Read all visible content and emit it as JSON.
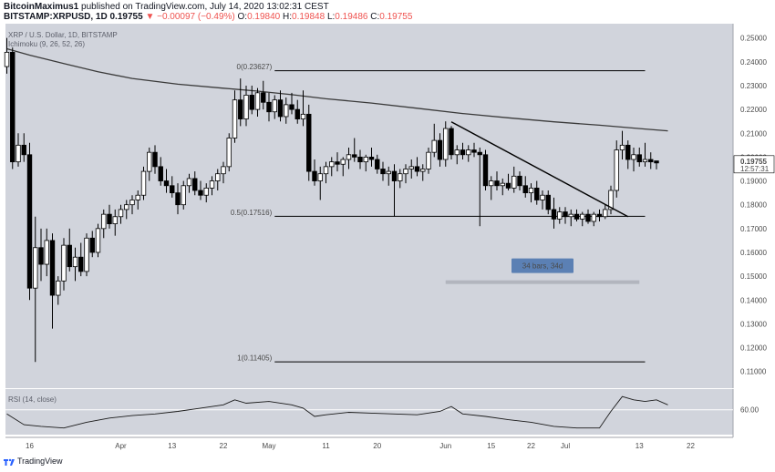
{
  "header": {
    "author": "BitcoinMaximus1",
    "published": "published on TradingView.com, July 14, 2020 13:02:31 CEST",
    "symbol": "BITSTAMP:XRPUSD, 1D",
    "price": "0.19755",
    "change": "▼ −0.00097 (−0.49%)",
    "ohlc_o_label": "O:",
    "ohlc_o": "0.19840",
    "ohlc_h_label": "H:",
    "ohlc_h": "0.19848",
    "ohlc_l_label": "L:",
    "ohlc_l": "0.19486",
    "ohlc_c_label": "C:",
    "ohlc_c": "0.19755"
  },
  "legend": {
    "pair": "XRP / U.S. Dollar, 1D, BITSTAMP",
    "ichimoku": "Ichimoku (9, 26, 52, 26)",
    "rsi": "RSI (14, close)"
  },
  "footer": {
    "brand": "TradingView"
  },
  "colors": {
    "background": "#d1d4dc",
    "candle_up": "#ffffff",
    "candle_down": "#000000",
    "ma_line": "#3a3a3a",
    "label_box": "#5b80b4",
    "range_bar": "#b2b5be",
    "price_box": "#ffffff"
  },
  "chart_data": {
    "type": "candlestick",
    "y_axis": {
      "ticks": [
        0.25,
        0.24,
        0.23,
        0.22,
        0.21,
        0.2,
        0.19,
        0.18,
        0.17,
        0.16,
        0.15,
        0.14,
        0.13,
        0.12,
        0.11
      ],
      "tick_labels": [
        "0.25000",
        "0.24000",
        "0.23000",
        "0.22000",
        "0.21000",
        "0.20000",
        "0.19000",
        "0.18000",
        "0.17000",
        "0.16000",
        "0.15000",
        "0.14000",
        "0.13000",
        "0.12000",
        "0.11000"
      ],
      "ylim": [
        0.103,
        0.256
      ]
    },
    "x_axis": {
      "tick_labels": [
        "16",
        "Apr",
        "13",
        "22",
        "May",
        "11",
        "20",
        "Jun",
        "15",
        "22",
        "Jul",
        "13",
        "22"
      ],
      "tick_index": [
        4,
        20,
        29,
        38,
        46,
        56,
        65,
        77,
        85,
        92,
        98,
        111,
        120
      ]
    },
    "current_price": {
      "value": 0.19755,
      "label": "0.19755",
      "countdown": "12:57:31"
    },
    "fib_levels": [
      {
        "label": "0(0.23627)",
        "value": 0.23627,
        "x_start": 47,
        "x_end": 112
      },
      {
        "label": "0.5(0.17516)",
        "value": 0.17516,
        "x_start": 47,
        "x_end": 112
      },
      {
        "label": "1(0.11405)",
        "value": 0.11405,
        "x_start": 47,
        "x_end": 112
      }
    ],
    "trendline": {
      "x1": 78,
      "y1": 0.2148,
      "x2": 109,
      "y2": 0.175
    },
    "range_measure": {
      "label": "34 bars, 34d",
      "x_start": 77,
      "x_end": 111,
      "value": 0.1475
    },
    "ma_line": {
      "x": [
        0,
        4,
        10,
        16,
        22,
        30,
        38,
        44,
        50,
        56,
        64,
        72,
        80,
        88,
        96,
        104,
        112,
        116
      ],
      "y": [
        0.2455,
        0.2428,
        0.2393,
        0.2358,
        0.233,
        0.2306,
        0.2289,
        0.2277,
        0.2262,
        0.2245,
        0.2227,
        0.2205,
        0.2183,
        0.2165,
        0.2148,
        0.2134,
        0.2118,
        0.211
      ]
    },
    "candles": [
      {
        "o": 0.238,
        "h": 0.25,
        "l": 0.235,
        "c": 0.244
      },
      {
        "o": 0.244,
        "h": 0.246,
        "l": 0.195,
        "c": 0.198
      },
      {
        "o": 0.198,
        "h": 0.21,
        "l": 0.196,
        "c": 0.205
      },
      {
        "o": 0.205,
        "h": 0.21,
        "l": 0.198,
        "c": 0.201
      },
      {
        "o": 0.201,
        "h": 0.206,
        "l": 0.14,
        "c": 0.145
      },
      {
        "o": 0.145,
        "h": 0.175,
        "l": 0.114,
        "c": 0.162
      },
      {
        "o": 0.162,
        "h": 0.17,
        "l": 0.148,
        "c": 0.155
      },
      {
        "o": 0.155,
        "h": 0.17,
        "l": 0.15,
        "c": 0.165
      },
      {
        "o": 0.165,
        "h": 0.168,
        "l": 0.128,
        "c": 0.142
      },
      {
        "o": 0.142,
        "h": 0.15,
        "l": 0.138,
        "c": 0.148
      },
      {
        "o": 0.148,
        "h": 0.166,
        "l": 0.144,
        "c": 0.163
      },
      {
        "o": 0.163,
        "h": 0.17,
        "l": 0.152,
        "c": 0.154
      },
      {
        "o": 0.154,
        "h": 0.162,
        "l": 0.148,
        "c": 0.158
      },
      {
        "o": 0.158,
        "h": 0.164,
        "l": 0.15,
        "c": 0.152
      },
      {
        "o": 0.152,
        "h": 0.168,
        "l": 0.15,
        "c": 0.166
      },
      {
        "o": 0.166,
        "h": 0.169,
        "l": 0.158,
        "c": 0.16
      },
      {
        "o": 0.16,
        "h": 0.172,
        "l": 0.158,
        "c": 0.17
      },
      {
        "o": 0.17,
        "h": 0.178,
        "l": 0.166,
        "c": 0.176
      },
      {
        "o": 0.176,
        "h": 0.18,
        "l": 0.17,
        "c": 0.172
      },
      {
        "o": 0.172,
        "h": 0.178,
        "l": 0.167,
        "c": 0.175
      },
      {
        "o": 0.175,
        "h": 0.18,
        "l": 0.172,
        "c": 0.178
      },
      {
        "o": 0.178,
        "h": 0.182,
        "l": 0.174,
        "c": 0.18
      },
      {
        "o": 0.18,
        "h": 0.184,
        "l": 0.176,
        "c": 0.182
      },
      {
        "o": 0.182,
        "h": 0.186,
        "l": 0.178,
        "c": 0.184
      },
      {
        "o": 0.184,
        "h": 0.196,
        "l": 0.182,
        "c": 0.194
      },
      {
        "o": 0.194,
        "h": 0.204,
        "l": 0.19,
        "c": 0.202
      },
      {
        "o": 0.202,
        "h": 0.205,
        "l": 0.193,
        "c": 0.196
      },
      {
        "o": 0.196,
        "h": 0.2,
        "l": 0.188,
        "c": 0.19
      },
      {
        "o": 0.19,
        "h": 0.195,
        "l": 0.185,
        "c": 0.188
      },
      {
        "o": 0.188,
        "h": 0.192,
        "l": 0.183,
        "c": 0.185
      },
      {
        "o": 0.185,
        "h": 0.189,
        "l": 0.176,
        "c": 0.18
      },
      {
        "o": 0.18,
        "h": 0.19,
        "l": 0.178,
        "c": 0.188
      },
      {
        "o": 0.188,
        "h": 0.193,
        "l": 0.185,
        "c": 0.191
      },
      {
        "o": 0.191,
        "h": 0.194,
        "l": 0.184,
        "c": 0.186
      },
      {
        "o": 0.186,
        "h": 0.19,
        "l": 0.182,
        "c": 0.184
      },
      {
        "o": 0.184,
        "h": 0.189,
        "l": 0.181,
        "c": 0.187
      },
      {
        "o": 0.187,
        "h": 0.192,
        "l": 0.184,
        "c": 0.19
      },
      {
        "o": 0.19,
        "h": 0.195,
        "l": 0.186,
        "c": 0.193
      },
      {
        "o": 0.193,
        "h": 0.198,
        "l": 0.189,
        "c": 0.196
      },
      {
        "o": 0.196,
        "h": 0.21,
        "l": 0.194,
        "c": 0.208
      },
      {
        "o": 0.208,
        "h": 0.228,
        "l": 0.206,
        "c": 0.224
      },
      {
        "o": 0.224,
        "h": 0.233,
        "l": 0.213,
        "c": 0.216
      },
      {
        "o": 0.216,
        "h": 0.23,
        "l": 0.213,
        "c": 0.226
      },
      {
        "o": 0.226,
        "h": 0.23,
        "l": 0.218,
        "c": 0.22
      },
      {
        "o": 0.22,
        "h": 0.229,
        "l": 0.217,
        "c": 0.227
      },
      {
        "o": 0.227,
        "h": 0.232,
        "l": 0.22,
        "c": 0.223
      },
      {
        "o": 0.223,
        "h": 0.227,
        "l": 0.215,
        "c": 0.219
      },
      {
        "o": 0.219,
        "h": 0.226,
        "l": 0.216,
        "c": 0.224
      },
      {
        "o": 0.224,
        "h": 0.228,
        "l": 0.215,
        "c": 0.217
      },
      {
        "o": 0.217,
        "h": 0.225,
        "l": 0.214,
        "c": 0.222
      },
      {
        "o": 0.222,
        "h": 0.227,
        "l": 0.218,
        "c": 0.22
      },
      {
        "o": 0.22,
        "h": 0.224,
        "l": 0.214,
        "c": 0.216
      },
      {
        "o": 0.216,
        "h": 0.228,
        "l": 0.213,
        "c": 0.218
      },
      {
        "o": 0.218,
        "h": 0.222,
        "l": 0.19,
        "c": 0.194
      },
      {
        "o": 0.194,
        "h": 0.199,
        "l": 0.188,
        "c": 0.19
      },
      {
        "o": 0.19,
        "h": 0.196,
        "l": 0.182,
        "c": 0.193
      },
      {
        "o": 0.193,
        "h": 0.198,
        "l": 0.189,
        "c": 0.196
      },
      {
        "o": 0.196,
        "h": 0.2,
        "l": 0.192,
        "c": 0.198
      },
      {
        "o": 0.198,
        "h": 0.202,
        "l": 0.194,
        "c": 0.197
      },
      {
        "o": 0.197,
        "h": 0.2,
        "l": 0.192,
        "c": 0.199
      },
      {
        "o": 0.199,
        "h": 0.204,
        "l": 0.195,
        "c": 0.201
      },
      {
        "o": 0.201,
        "h": 0.208,
        "l": 0.198,
        "c": 0.2
      },
      {
        "o": 0.2,
        "h": 0.203,
        "l": 0.195,
        "c": 0.198
      },
      {
        "o": 0.198,
        "h": 0.201,
        "l": 0.194,
        "c": 0.2
      },
      {
        "o": 0.2,
        "h": 0.204,
        "l": 0.196,
        "c": 0.199
      },
      {
        "o": 0.199,
        "h": 0.201,
        "l": 0.193,
        "c": 0.195
      },
      {
        "o": 0.195,
        "h": 0.198,
        "l": 0.19,
        "c": 0.193
      },
      {
        "o": 0.193,
        "h": 0.196,
        "l": 0.188,
        "c": 0.194
      },
      {
        "o": 0.194,
        "h": 0.197,
        "l": 0.175,
        "c": 0.19
      },
      {
        "o": 0.19,
        "h": 0.195,
        "l": 0.187,
        "c": 0.193
      },
      {
        "o": 0.193,
        "h": 0.197,
        "l": 0.189,
        "c": 0.195
      },
      {
        "o": 0.195,
        "h": 0.199,
        "l": 0.191,
        "c": 0.196
      },
      {
        "o": 0.196,
        "h": 0.2,
        "l": 0.192,
        "c": 0.194
      },
      {
        "o": 0.194,
        "h": 0.197,
        "l": 0.19,
        "c": 0.195
      },
      {
        "o": 0.195,
        "h": 0.204,
        "l": 0.193,
        "c": 0.202
      },
      {
        "o": 0.202,
        "h": 0.214,
        "l": 0.2,
        "c": 0.207
      },
      {
        "o": 0.207,
        "h": 0.21,
        "l": 0.196,
        "c": 0.199
      },
      {
        "o": 0.199,
        "h": 0.215,
        "l": 0.196,
        "c": 0.212
      },
      {
        "o": 0.212,
        "h": 0.213,
        "l": 0.199,
        "c": 0.201
      },
      {
        "o": 0.201,
        "h": 0.205,
        "l": 0.197,
        "c": 0.203
      },
      {
        "o": 0.203,
        "h": 0.206,
        "l": 0.199,
        "c": 0.201
      },
      {
        "o": 0.201,
        "h": 0.205,
        "l": 0.198,
        "c": 0.203
      },
      {
        "o": 0.203,
        "h": 0.206,
        "l": 0.2,
        "c": 0.202
      },
      {
        "o": 0.202,
        "h": 0.204,
        "l": 0.171,
        "c": 0.201
      },
      {
        "o": 0.201,
        "h": 0.203,
        "l": 0.186,
        "c": 0.188
      },
      {
        "o": 0.188,
        "h": 0.192,
        "l": 0.182,
        "c": 0.19
      },
      {
        "o": 0.19,
        "h": 0.194,
        "l": 0.186,
        "c": 0.188
      },
      {
        "o": 0.188,
        "h": 0.191,
        "l": 0.184,
        "c": 0.189
      },
      {
        "o": 0.189,
        "h": 0.193,
        "l": 0.186,
        "c": 0.187
      },
      {
        "o": 0.187,
        "h": 0.196,
        "l": 0.185,
        "c": 0.192
      },
      {
        "o": 0.192,
        "h": 0.194,
        "l": 0.186,
        "c": 0.188
      },
      {
        "o": 0.188,
        "h": 0.192,
        "l": 0.183,
        "c": 0.185
      },
      {
        "o": 0.185,
        "h": 0.189,
        "l": 0.181,
        "c": 0.187
      },
      {
        "o": 0.187,
        "h": 0.19,
        "l": 0.18,
        "c": 0.182
      },
      {
        "o": 0.182,
        "h": 0.186,
        "l": 0.178,
        "c": 0.184
      },
      {
        "o": 0.184,
        "h": 0.186,
        "l": 0.176,
        "c": 0.178
      },
      {
        "o": 0.178,
        "h": 0.183,
        "l": 0.17,
        "c": 0.174
      },
      {
        "o": 0.174,
        "h": 0.179,
        "l": 0.172,
        "c": 0.177
      },
      {
        "o": 0.177,
        "h": 0.179,
        "l": 0.172,
        "c": 0.175
      },
      {
        "o": 0.175,
        "h": 0.178,
        "l": 0.171,
        "c": 0.176
      },
      {
        "o": 0.176,
        "h": 0.178,
        "l": 0.173,
        "c": 0.174
      },
      {
        "o": 0.174,
        "h": 0.177,
        "l": 0.171,
        "c": 0.176
      },
      {
        "o": 0.176,
        "h": 0.178,
        "l": 0.172,
        "c": 0.173
      },
      {
        "o": 0.173,
        "h": 0.177,
        "l": 0.171,
        "c": 0.176
      },
      {
        "o": 0.176,
        "h": 0.178,
        "l": 0.173,
        "c": 0.175
      },
      {
        "o": 0.175,
        "h": 0.18,
        "l": 0.174,
        "c": 0.178
      },
      {
        "o": 0.178,
        "h": 0.188,
        "l": 0.176,
        "c": 0.186
      },
      {
        "o": 0.186,
        "h": 0.207,
        "l": 0.183,
        "c": 0.203
      },
      {
        "o": 0.203,
        "h": 0.211,
        "l": 0.199,
        "c": 0.205
      },
      {
        "o": 0.205,
        "h": 0.207,
        "l": 0.195,
        "c": 0.199
      },
      {
        "o": 0.199,
        "h": 0.204,
        "l": 0.194,
        "c": 0.201
      },
      {
        "o": 0.201,
        "h": 0.204,
        "l": 0.196,
        "c": 0.198
      },
      {
        "o": 0.198,
        "h": 0.206,
        "l": 0.196,
        "c": 0.199
      },
      {
        "o": 0.199,
        "h": 0.202,
        "l": 0.195,
        "c": 0.198
      },
      {
        "o": 0.1984,
        "h": 0.19848,
        "l": 0.19486,
        "c": 0.19755
      }
    ],
    "rsi": {
      "label": "RSI (14, close)",
      "tick_labels": [
        "60.00"
      ],
      "level": 60,
      "ylim": [
        30,
        85
      ],
      "x": [
        0,
        3,
        6,
        10,
        14,
        18,
        22,
        26,
        30,
        34,
        38,
        40,
        42,
        46,
        50,
        52,
        54,
        56,
        60,
        64,
        68,
        72,
        76,
        78,
        80,
        84,
        88,
        92,
        96,
        100,
        104,
        106,
        108,
        110,
        112,
        114,
        116
      ],
      "y": [
        55,
        42,
        40,
        38,
        45,
        50,
        53,
        55,
        58,
        62,
        66,
        72,
        68,
        70,
        66,
        62,
        52,
        54,
        57,
        56,
        55,
        54,
        58,
        64,
        55,
        52,
        48,
        45,
        40,
        38,
        38,
        58,
        76,
        72,
        70,
        72,
        66
      ]
    }
  }
}
